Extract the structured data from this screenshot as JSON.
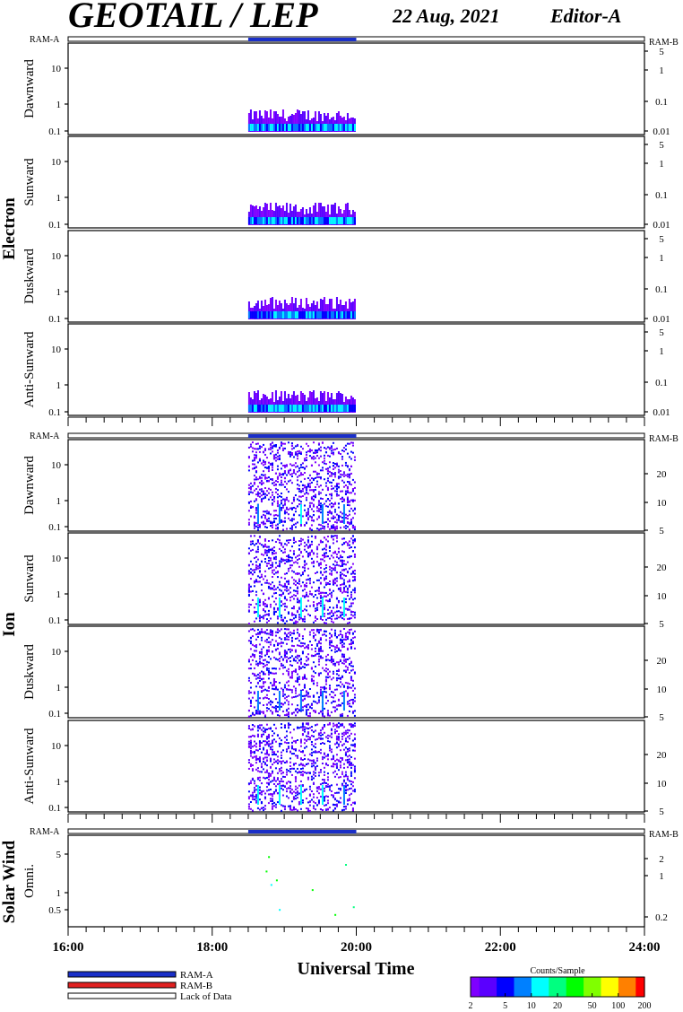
{
  "header": {
    "title": "GEOTAIL / LEP",
    "date": "22 Aug, 2021",
    "editor": "Editor-A"
  },
  "groups": [
    "Electron",
    "Ion",
    "Solar Wind"
  ],
  "ram_labels": {
    "left": "RAM-A",
    "right": "RAM-B"
  },
  "x_axis": {
    "label": "Universal Time",
    "ticks": [
      "16:00",
      "18:00",
      "20:00",
      "22:00",
      "24:00"
    ],
    "range_hours": [
      16,
      24
    ]
  },
  "legend": {
    "items": [
      {
        "label": "RAM-A",
        "color": "#1a2fc8"
      },
      {
        "label": "RAM-B",
        "color": "#e02020"
      },
      {
        "label": "Lack of Data",
        "color": "#ffffff"
      }
    ]
  },
  "colorbar": {
    "title": "Counts/Sample",
    "ticks": [
      "2",
      "5",
      "10",
      "20",
      "50",
      "100",
      "200"
    ],
    "colors": [
      "#7f00ff",
      "#5a00ff",
      "#0000ff",
      "#0080ff",
      "#00ffff",
      "#00ff80",
      "#00ff00",
      "#80ff00",
      "#ffff00",
      "#ff8000",
      "#ff0000"
    ]
  },
  "chart_data": [
    {
      "type": "heatmap",
      "group": "Electron",
      "panels": [
        {
          "label": "Dawnward",
          "left_ticks": [
            "10",
            "1",
            "0.1"
          ],
          "right_ticks": [
            "5",
            "1",
            "0.1",
            "0.01"
          ]
        },
        {
          "label": "Sunward",
          "left_ticks": [
            "10",
            "1",
            "0.1"
          ],
          "right_ticks": [
            "5",
            "1",
            "0.1",
            "0.01"
          ]
        },
        {
          "label": "Duskward",
          "left_ticks": [
            "10",
            "1",
            "0.1"
          ],
          "right_ticks": [
            "5",
            "1",
            "0.1",
            "0.01"
          ]
        },
        {
          "label": "Anti-Sunward",
          "left_ticks": [
            "10",
            "1",
            "0.1"
          ],
          "right_ticks": [
            "5",
            "1",
            "0.1",
            "0.01"
          ]
        }
      ],
      "data_interval_hours": [
        18.5,
        20.0
      ],
      "ram_a_interval_hours": [
        18.5,
        20.0
      ],
      "dominant_counts": "2-10 counts/sample at low energy"
    },
    {
      "type": "heatmap",
      "group": "Ion",
      "panels": [
        {
          "label": "Dawnward",
          "left_ticks": [
            "10",
            "1",
            "0.1"
          ],
          "right_ticks": [
            "20",
            "10",
            "5"
          ]
        },
        {
          "label": "Sunward",
          "left_ticks": [
            "10",
            "1",
            "0.1"
          ],
          "right_ticks": [
            "20",
            "10",
            "5"
          ]
        },
        {
          "label": "Duskward",
          "left_ticks": [
            "10",
            "1",
            "0.1"
          ],
          "right_ticks": [
            "20",
            "10",
            "5"
          ]
        },
        {
          "label": "Anti-Sunward",
          "left_ticks": [
            "10",
            "1",
            "0.1"
          ],
          "right_ticks": [
            "20",
            "10",
            "5"
          ]
        }
      ],
      "data_interval_hours": [
        18.5,
        20.0
      ],
      "ram_a_interval_hours": [
        18.5,
        20.0
      ],
      "dominant_counts": "2-10 counts/sample"
    },
    {
      "type": "heatmap",
      "group": "Solar Wind",
      "panels": [
        {
          "label": "Omni.",
          "left_ticks": [
            "5",
            "1",
            "0.5"
          ],
          "right_ticks": [
            "2",
            "1",
            "0.2"
          ]
        }
      ],
      "data_interval_hours": [
        18.5,
        20.0
      ],
      "ram_a_interval_hours": [
        18.5,
        20.0
      ],
      "dominant_counts": "sparse, 10-50 counts/sample"
    }
  ]
}
